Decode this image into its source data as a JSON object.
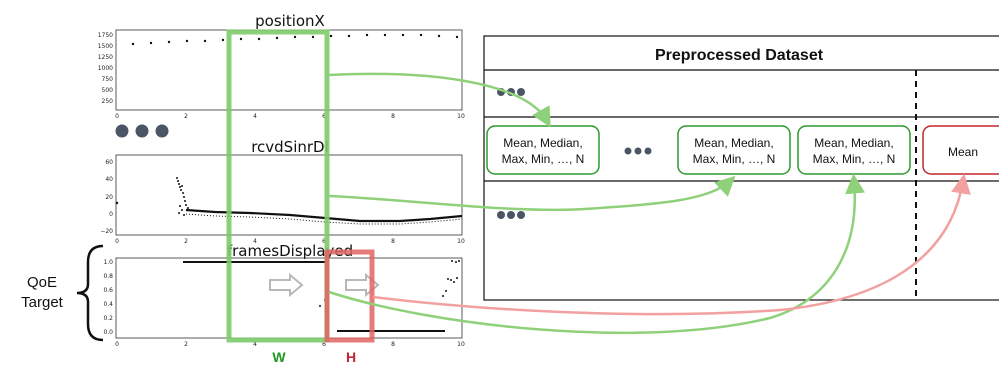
{
  "plots": [
    {
      "title": "positionX",
      "y_ticks": [
        "1750",
        "1500",
        "1250",
        "1000",
        "750",
        "500",
        "250"
      ],
      "x_ticks": [
        "0",
        "2",
        "4",
        "6",
        "8",
        "10"
      ]
    },
    {
      "title": "rcvdSinrDl",
      "y_ticks": [
        "60",
        "40",
        "20",
        "0",
        "−20"
      ],
      "x_ticks": [
        "0",
        "2",
        "4",
        "6",
        "8",
        "10"
      ]
    },
    {
      "title": "framesDisplayed",
      "y_ticks": [
        "1.0",
        "0.8",
        "0.6",
        "0.4",
        "0.2",
        "0.0"
      ],
      "x_ticks": [
        "0",
        "2",
        "4",
        "6",
        "8",
        "10"
      ]
    }
  ],
  "qoe_label": {
    "line1": "QoE",
    "line2": "Target"
  },
  "window_labels": {
    "w": "W",
    "h": "H"
  },
  "dataset": {
    "title": "Preprocessed Dataset",
    "feature_box": {
      "line1": "Mean, Median,",
      "line2": "Max, Min, …, N"
    },
    "target_box": "Mean"
  },
  "colors": {
    "green_window": "#7ccb6a",
    "green_arrow": "#8fd07a",
    "green_box_border": "#2e9a2e",
    "red_window": "#e06464",
    "red_arrow": "#f2a0a0",
    "red_box_border": "#c0282d",
    "w_label": "#1e9a1e",
    "h_label": "#c0282d",
    "ellipsis_dots": "#4a5565"
  }
}
